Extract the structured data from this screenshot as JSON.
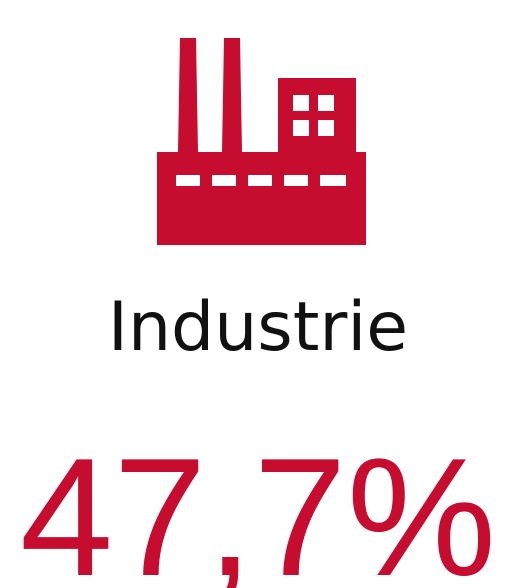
{
  "label": "Industrie",
  "value": "47,7%"
}
